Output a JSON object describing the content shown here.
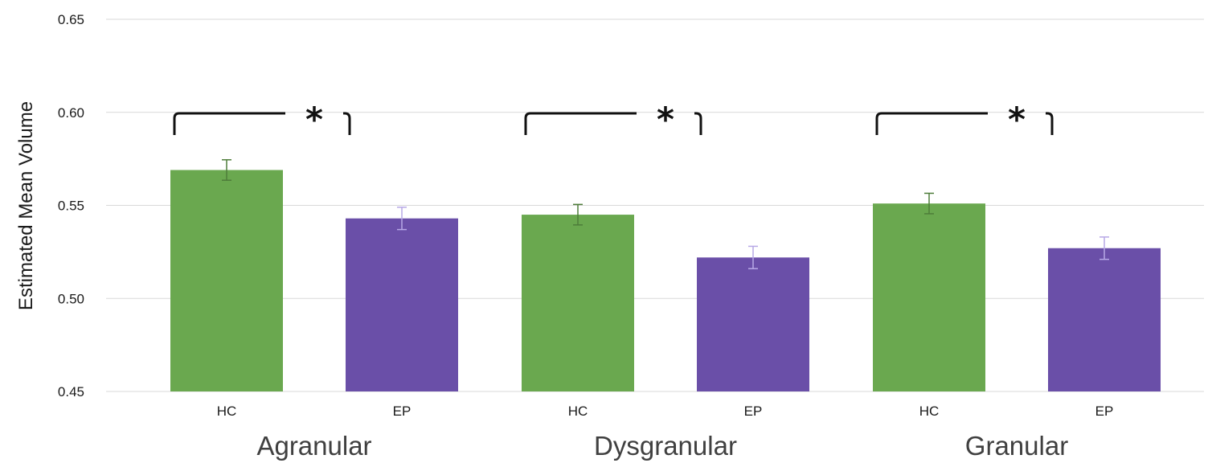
{
  "chart_data": {
    "type": "bar",
    "title": "",
    "xlabel": "",
    "ylabel": "Estimated Mean Volume",
    "ylim": [
      0.45,
      0.65
    ],
    "yticks": [
      "0.45",
      "0.50",
      "0.55",
      "0.60",
      "0.65"
    ],
    "grid": true,
    "legend": "none",
    "groups": [
      {
        "name": "Agranular",
        "significance": "*",
        "bars": [
          {
            "label": "HC",
            "value": 0.569,
            "error": 0.0055,
            "color": "#6aa84f",
            "error_color": "#4e7d3a"
          },
          {
            "label": "EP",
            "value": 0.543,
            "error": 0.006,
            "color": "#6a4fa8",
            "error_color": "#b7a8e6"
          }
        ]
      },
      {
        "name": "Dysgranular",
        "significance": "*",
        "bars": [
          {
            "label": "HC",
            "value": 0.545,
            "error": 0.0055,
            "color": "#6aa84f",
            "error_color": "#4e7d3a"
          },
          {
            "label": "EP",
            "value": 0.522,
            "error": 0.006,
            "color": "#6a4fa8",
            "error_color": "#b7a8e6"
          }
        ]
      },
      {
        "name": "Granular",
        "significance": "*",
        "bars": [
          {
            "label": "HC",
            "value": 0.551,
            "error": 0.0055,
            "color": "#6aa84f",
            "error_color": "#4e7d3a"
          },
          {
            "label": "EP",
            "value": 0.527,
            "error": 0.006,
            "color": "#6a4fa8",
            "error_color": "#b7a8e6"
          }
        ]
      }
    ]
  }
}
